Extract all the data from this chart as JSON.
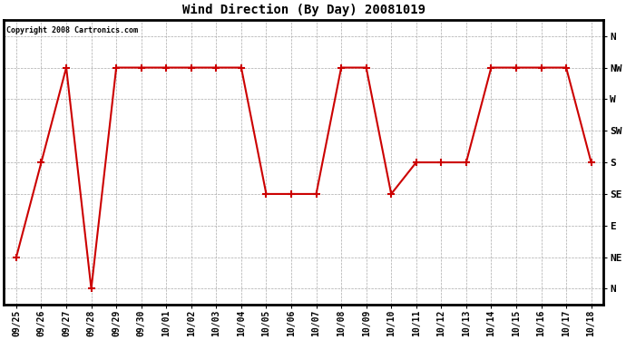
{
  "title": "Wind Direction (By Day) 20081019",
  "copyright": "Copyright 2008 Cartronics.com",
  "plot_bg_color": "#ffffff",
  "fig_bg_color": "#ffffff",
  "line_color": "#cc0000",
  "marker": "+",
  "marker_size": 6,
  "marker_color": "#cc0000",
  "line_width": 1.5,
  "x_labels": [
    "09/25",
    "09/26",
    "09/27",
    "09/28",
    "09/29",
    "09/30",
    "10/01",
    "10/02",
    "10/03",
    "10/04",
    "10/05",
    "10/06",
    "10/07",
    "10/08",
    "10/09",
    "10/10",
    "10/11",
    "10/12",
    "10/13",
    "10/14",
    "10/15",
    "10/16",
    "10/17",
    "10/18"
  ],
  "y_labels": [
    "N",
    "NE",
    "E",
    "SE",
    "S",
    "SW",
    "W",
    "NW",
    "N"
  ],
  "y_values": [
    0,
    1,
    2,
    3,
    4,
    5,
    6,
    7,
    8
  ],
  "data_points": [
    1,
    4,
    7,
    0,
    7,
    7,
    7,
    7,
    7,
    7,
    3,
    3,
    3,
    7,
    7,
    3,
    4,
    4,
    4,
    7,
    7,
    7,
    7,
    4
  ],
  "grid_color": "#aaaaaa",
  "grid_linestyle": "--",
  "grid_linewidth": 0.5,
  "title_fontsize": 10,
  "copyright_fontsize": 6,
  "tick_fontsize": 7,
  "ytick_fontsize": 8
}
